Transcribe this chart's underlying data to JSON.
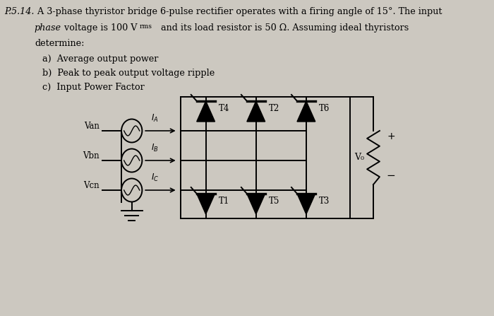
{
  "bg_color": "#ccc8c0",
  "text_color": "#000000",
  "line1_prefix": "P.5.14.",
  "line1_main": " A 3-phase thyristor bridge 6-pulse rectifier operates with a firing angle of 15°. The input",
  "line2_italic": "phase",
  "line2_rest": " voltage is 100 V",
  "line2_sub": "rms",
  "line2_end": " and its load resistor is 50 Ω. Assuming ideal thyristors",
  "line3": "determine:",
  "items": [
    "a)  Average output power",
    "b)  Peak to peak output voltage ripple",
    "c)  Input Power Factor"
  ],
  "upper_labels": [
    "T4",
    "T2",
    "T6"
  ],
  "lower_labels": [
    "T1",
    "T5",
    "T3"
  ],
  "src_labels": [
    "Van",
    "Vbn",
    "Vcn"
  ],
  "cur_labels": [
    "I_A",
    "I_B",
    "I_C"
  ],
  "vo_label": "V₀",
  "plus": "+",
  "minus": "−"
}
